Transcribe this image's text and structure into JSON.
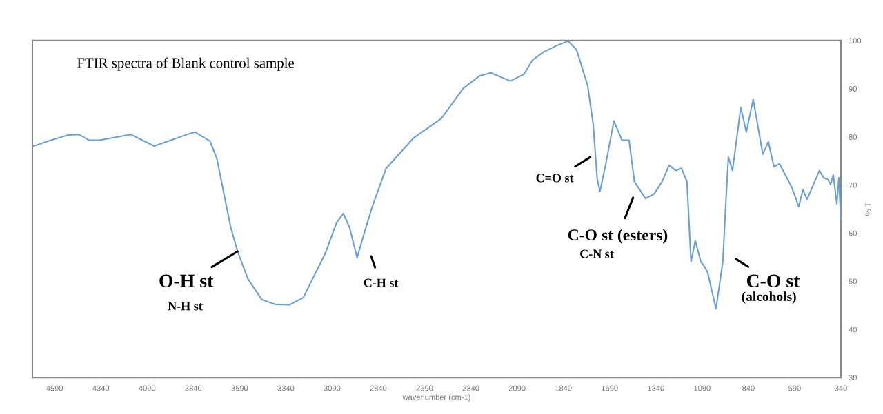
{
  "chart_data": {
    "type": "line",
    "title": "FTIR spectra of Blank control sample",
    "xlabel": "wavenumber (cm-1)",
    "ylabel": "% T",
    "x": [
      4710,
      4627,
      4515,
      4459,
      4403,
      4347,
      4235,
      4179,
      4052,
      3881,
      3832,
      3750,
      3713,
      3676,
      3638,
      3601,
      3545,
      3470,
      3396,
      3321,
      3246,
      3127,
      3067,
      3030,
      2996,
      2955,
      2918,
      2873,
      2799,
      2649,
      2500,
      2381,
      2291,
      2232,
      2127,
      2053,
      2008,
      1948,
      1873,
      1814,
      1769,
      1709,
      1679,
      1657,
      1642,
      1612,
      1567,
      1523,
      1485,
      1456,
      1396,
      1351,
      1306,
      1269,
      1232,
      1202,
      1172,
      1150,
      1127,
      1097,
      1075,
      1060,
      1015,
      978,
      963,
      948,
      926,
      881,
      851,
      814,
      762,
      732,
      702,
      672,
      605,
      568,
      545,
      523,
      456,
      433,
      411,
      396,
      381,
      362,
      351,
      340
    ],
    "series": [
      {
        "color": "#6a9fd4",
        "values": [
          78.0,
          79.1,
          80.4,
          80.5,
          79.3,
          79.3,
          80.1,
          80.5,
          78.1,
          80.4,
          81.0,
          79.1,
          75.5,
          68.4,
          61.2,
          56.2,
          50.5,
          46.2,
          45.2,
          45.1,
          46.6,
          55.8,
          62.1,
          64.1,
          61.2,
          54.9,
          59.8,
          65.5,
          73.4,
          79.8,
          83.8,
          90.1,
          92.7,
          93.3,
          91.6,
          93.0,
          95.9,
          97.6,
          99.0,
          99.9,
          98.1,
          90.7,
          82.7,
          71.2,
          68.7,
          74.1,
          83.3,
          79.3,
          79.3,
          70.7,
          67.2,
          68.1,
          70.7,
          74.1,
          73.0,
          73.5,
          70.7,
          54.1,
          58.4,
          54.1,
          52.9,
          51.8,
          44.3,
          54.1,
          65.5,
          75.8,
          73.0,
          86.1,
          81.0,
          87.8,
          76.4,
          79.0,
          73.8,
          74.4,
          69.5,
          65.5,
          69.0,
          67.0,
          73.0,
          71.5,
          71.2,
          70.1,
          72.1,
          66.1,
          71.5,
          62.7
        ]
      }
    ],
    "xlim": [
      4710,
      340
    ],
    "xticks": [
      4590,
      4340,
      4090,
      3840,
      3590,
      3340,
      3090,
      2840,
      2590,
      2340,
      2090,
      1840,
      1590,
      1340,
      1090,
      840,
      590,
      340
    ],
    "ylim": [
      30,
      100
    ],
    "yticks": [
      30,
      40,
      50,
      60,
      70,
      80,
      90,
      100
    ],
    "grid": false,
    "legend": false,
    "marker": "none",
    "line_style": "solid",
    "annotations": [
      {
        "text": "O-H st",
        "x": 3601,
        "y": 56.2
      },
      "N-H st",
      "C-H st",
      "C=O st",
      "C-O st (esters)",
      "C-N st",
      "C-O st",
      "(alcohols)"
    ]
  }
}
